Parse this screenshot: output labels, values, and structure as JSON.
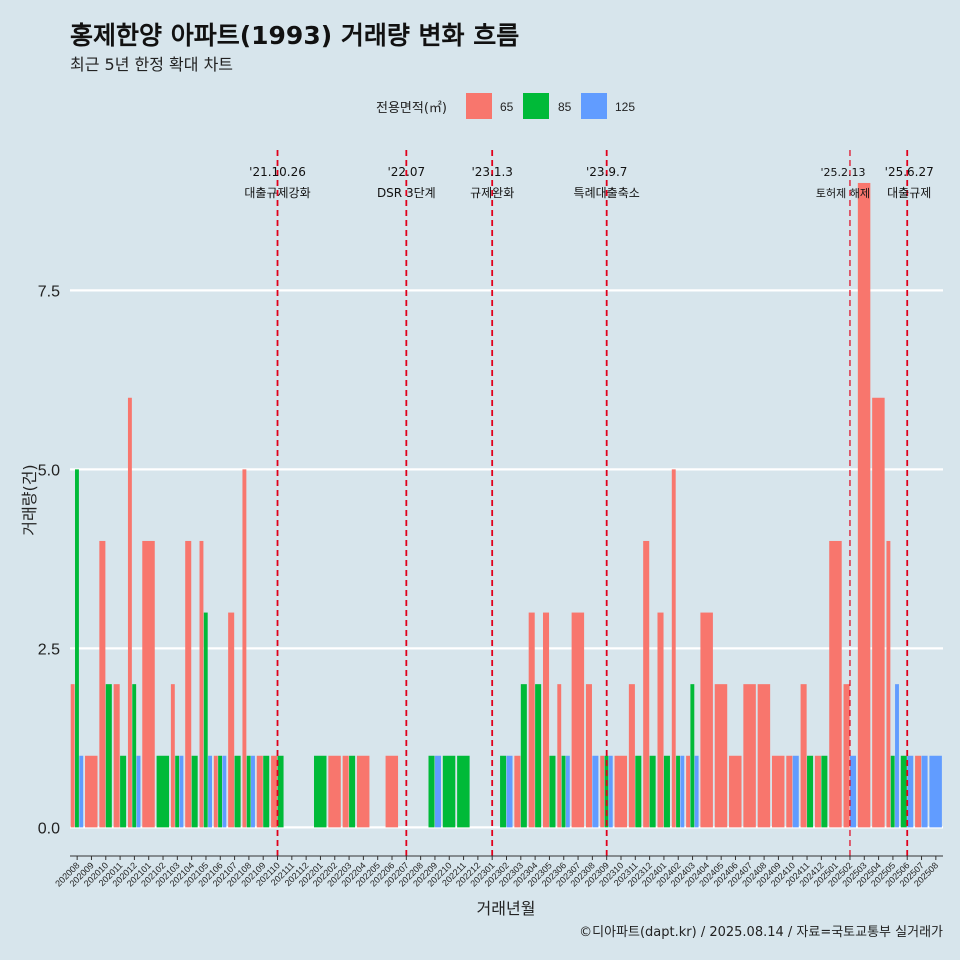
{
  "chart_data": {
    "type": "bar",
    "title": "홍제한양 아파트(1993) 거래량 변화 흐름",
    "subtitle": "최근 5년 한정 확대 차트",
    "xlabel": "거래년월",
    "ylabel": "거래량(건)",
    "ylim": [
      -0.4,
      9.6
    ],
    "yticks": [
      0.0,
      2.5,
      5.0,
      7.5
    ],
    "ytick_labels": [
      "0.0",
      "2.5",
      "5.0",
      "7.5"
    ],
    "grid": true,
    "legend": {
      "title": "전용면적(㎡)",
      "placement": "top",
      "entries": [
        {
          "name": "65",
          "color": "#f8766d"
        },
        {
          "name": "85",
          "color": "#00ba38"
        },
        {
          "name": "125",
          "color": "#619cff"
        }
      ]
    },
    "categories": [
      "202008",
      "202009",
      "202010",
      "202011",
      "202012",
      "202101",
      "202102",
      "202103",
      "202104",
      "202105",
      "202106",
      "202107",
      "202108",
      "202109",
      "202110",
      "202111",
      "202112",
      "202201",
      "202202",
      "202203",
      "202204",
      "202205",
      "202206",
      "202207",
      "202208",
      "202209",
      "202210",
      "202211",
      "202212",
      "202301",
      "202302",
      "202303",
      "202304",
      "202305",
      "202306",
      "202307",
      "202308",
      "202309",
      "202310",
      "202311",
      "202312",
      "202401",
      "202402",
      "202403",
      "202404",
      "202405",
      "202406",
      "202407",
      "202408",
      "202409",
      "202410",
      "202411",
      "202412",
      "202501",
      "202502",
      "202503",
      "202504",
      "202505",
      "202506",
      "202507",
      "202508"
    ],
    "series": [
      {
        "name": "65",
        "color": "#f8766d",
        "values": [
          2,
          1,
          4,
          2,
          6,
          4,
          0,
          2,
          4,
          4,
          1,
          3,
          5,
          1,
          1,
          0,
          0,
          0,
          1,
          1,
          1,
          0,
          1,
          0,
          0,
          0,
          0,
          0,
          0,
          0,
          0,
          1,
          3,
          3,
          2,
          3,
          2,
          1,
          1,
          2,
          4,
          3,
          5,
          1,
          3,
          2,
          1,
          2,
          2,
          1,
          1,
          2,
          1,
          4,
          2,
          9,
          6,
          4,
          0,
          1,
          0
        ]
      },
      {
        "name": "85",
        "color": "#00ba38",
        "values": [
          5,
          0,
          2,
          1,
          2,
          0,
          1,
          1,
          1,
          3,
          1,
          1,
          1,
          1,
          1,
          0,
          0,
          1,
          0,
          1,
          0,
          0,
          0,
          0,
          0,
          1,
          1,
          1,
          0,
          0,
          1,
          2,
          2,
          1,
          1,
          0,
          0,
          1,
          0,
          1,
          1,
          1,
          1,
          2,
          0,
          0,
          0,
          0,
          0,
          0,
          0,
          1,
          1,
          0,
          0,
          0,
          0,
          1,
          1,
          0,
          0
        ]
      },
      {
        "name": "125",
        "color": "#619cff",
        "values": [
          1,
          0,
          0,
          0,
          1,
          0,
          0,
          1,
          0,
          1,
          1,
          0,
          1,
          0,
          0,
          0,
          0,
          0,
          0,
          0,
          0,
          0,
          0,
          0,
          0,
          1,
          0,
          0,
          0,
          0,
          1,
          0,
          0,
          0,
          1,
          0,
          1,
          1,
          0,
          0,
          0,
          0,
          1,
          1,
          0,
          0,
          0,
          0,
          0,
          0,
          1,
          0,
          0,
          0,
          1,
          0,
          0,
          2,
          1,
          1,
          1
        ]
      }
    ],
    "events": [
      {
        "date": "'21.10.26",
        "label": "대출규제강화",
        "at": "202110"
      },
      {
        "date": "'22.07",
        "label": "DSR 3단계",
        "at": "202207"
      },
      {
        "date": "'23.1.3",
        "label": "규제완화",
        "at": "202301"
      },
      {
        "date": "'23.9.7",
        "label": "특례대출축소",
        "at": "202309"
      },
      {
        "date": "'25.2.13",
        "label": "토허제 해제",
        "at": "202502"
      },
      {
        "date": "'25.6.27",
        "label": "대출규제",
        "at": "202506"
      }
    ],
    "caption": "©디아파트(dapt.kr) / 2025.08.14 / 자료=국토교통부 실거래가"
  }
}
